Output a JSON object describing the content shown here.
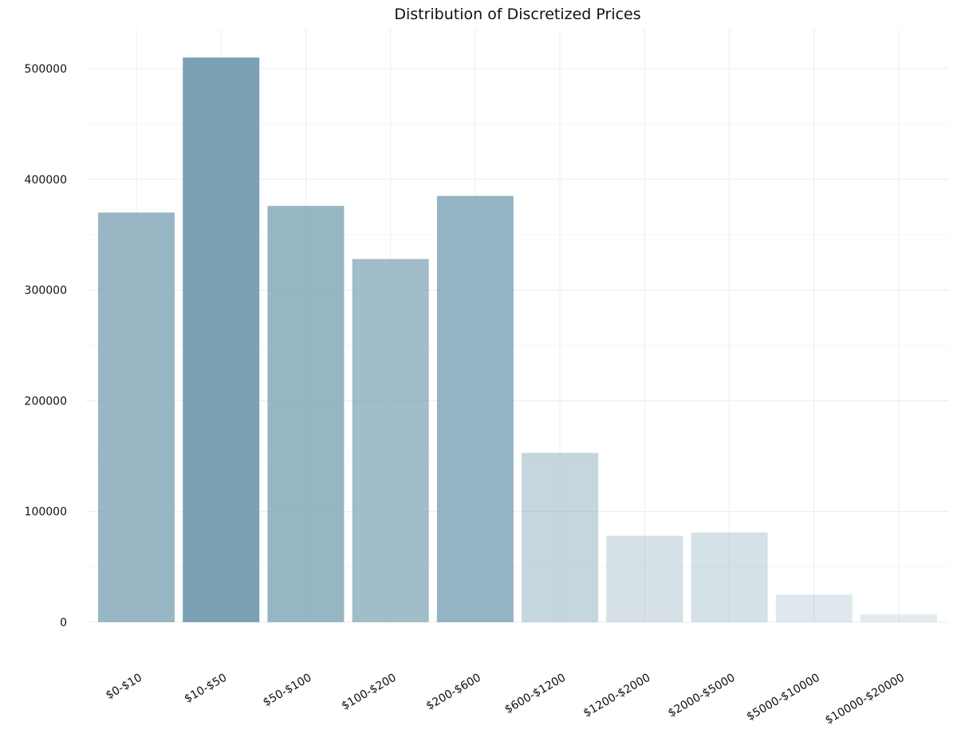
{
  "chart_data": {
    "type": "bar",
    "title": "Distribution of Discretized Prices",
    "xlabel": "",
    "ylabel": "",
    "categories": [
      "$0-$10",
      "$10-$50",
      "$50-$100",
      "$100-$200",
      "$200-$600",
      "$600-$1200",
      "$1200-$2000",
      "$2000-$5000",
      "$5000-$10000",
      "$10000-$20000"
    ],
    "values": [
      370000,
      510000,
      376000,
      328000,
      385000,
      153000,
      78000,
      81000,
      25000,
      7000
    ],
    "ylim": [
      0,
      535000
    ],
    "yticks": [
      0,
      100000,
      200000,
      300000,
      400000,
      500000
    ],
    "ytick_labels": [
      "0",
      "100000",
      "200000",
      "300000",
      "400000",
      "500000"
    ],
    "grid": true,
    "bar_color": "#7ba2b4",
    "background": "#ffffff"
  }
}
